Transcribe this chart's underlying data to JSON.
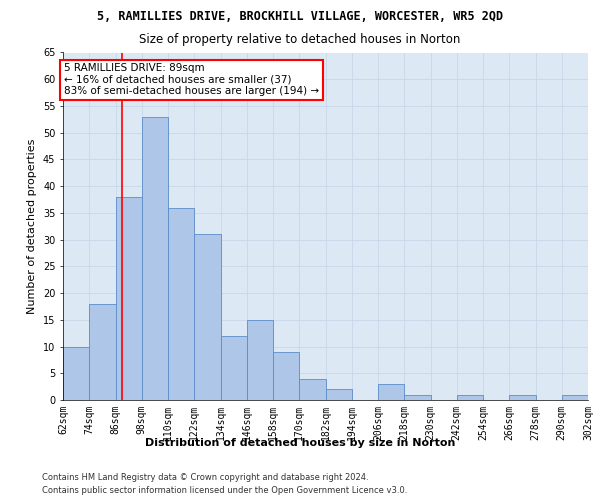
{
  "title_line1": "5, RAMILLIES DRIVE, BROCKHILL VILLAGE, WORCESTER, WR5 2QD",
  "title_line2": "Size of property relative to detached houses in Norton",
  "xlabel": "Distribution of detached houses by size in Norton",
  "ylabel": "Number of detached properties",
  "bar_values": [
    10,
    18,
    38,
    53,
    36,
    31,
    12,
    15,
    9,
    4,
    2,
    0,
    3,
    1,
    0,
    1,
    0,
    1,
    0,
    1
  ],
  "bin_labels": [
    "62sqm",
    "74sqm",
    "86sqm",
    "98sqm",
    "110sqm",
    "122sqm",
    "134sqm",
    "146sqm",
    "158sqm",
    "170sqm",
    "182sqm",
    "194sqm",
    "206sqm",
    "218sqm",
    "230sqm",
    "242sqm",
    "254sqm",
    "266sqm",
    "278sqm",
    "290sqm",
    "302sqm"
  ],
  "bin_starts": [
    62,
    74,
    86,
    98,
    110,
    122,
    134,
    146,
    158,
    170,
    182,
    194,
    206,
    218,
    230,
    242,
    254,
    266,
    278,
    290
  ],
  "bin_width": 12,
  "bar_color": "#aec6e8",
  "bar_edge_color": "#5b8cc8",
  "grid_color": "#c8d8e8",
  "background_color": "#dce9f5",
  "property_size": 89,
  "annotation_text": "5 RAMILLIES DRIVE: 89sqm\n← 16% of detached houses are smaller (37)\n83% of semi-detached houses are larger (194) →",
  "annotation_box_color": "white",
  "annotation_box_edge": "red",
  "ylim": [
    0,
    65
  ],
  "yticks": [
    0,
    5,
    10,
    15,
    20,
    25,
    30,
    35,
    40,
    45,
    50,
    55,
    60,
    65
  ],
  "footer_line1": "Contains HM Land Registry data © Crown copyright and database right 2024.",
  "footer_line2": "Contains public sector information licensed under the Open Government Licence v3.0.",
  "title_fontsize": 8.5,
  "subtitle_fontsize": 8.5,
  "axis_label_fontsize": 8,
  "ylabel_fontsize": 8,
  "tick_fontsize": 7,
  "annotation_fontsize": 7.5,
  "footer_fontsize": 6
}
